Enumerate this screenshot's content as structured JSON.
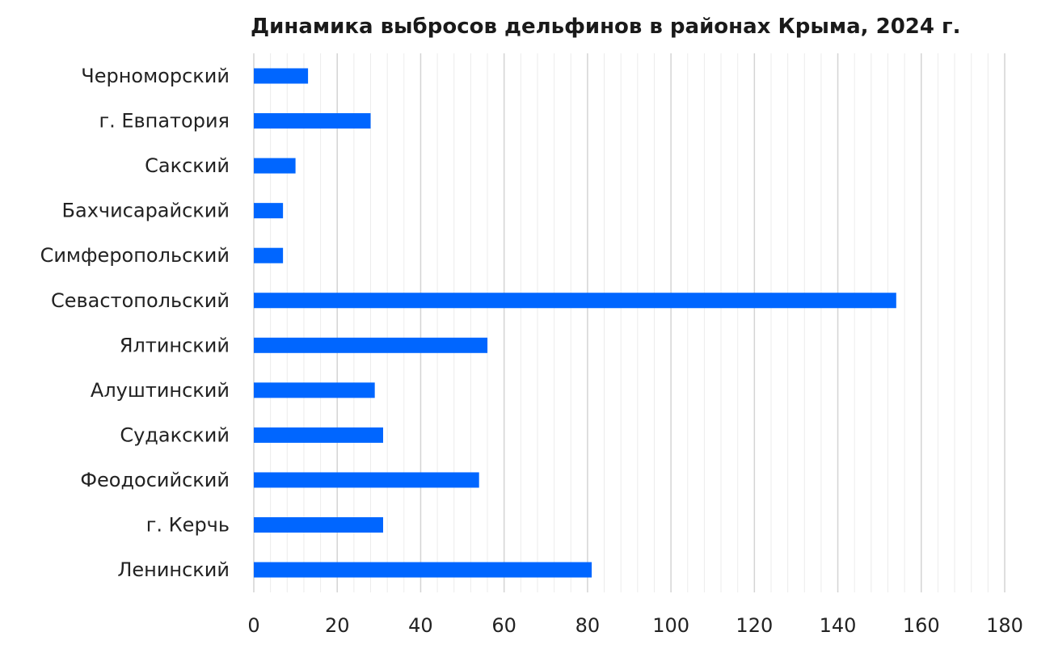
{
  "chart_data": {
    "type": "bar",
    "orientation": "horizontal",
    "title": "Динамика выбросов дельфинов в районах Крыма, 2024 г.",
    "xlabel": "",
    "ylabel": "",
    "categories": [
      "Черноморский",
      "г. Евпатория",
      "Сакский",
      "Бахчисарайский",
      "Симферопольский",
      "Севастопольский",
      "Ялтинский",
      "Алуштинский",
      "Судакский",
      "Феодосийский",
      "г. Керчь",
      "Ленинский"
    ],
    "values": [
      13,
      28,
      10,
      7,
      7,
      154,
      56,
      29,
      31,
      54,
      31,
      81
    ],
    "xlim": [
      0,
      180
    ],
    "x_ticks": [
      0,
      20,
      40,
      60,
      80,
      100,
      120,
      140,
      160,
      180
    ],
    "x_tick_labels": [
      "0",
      "20",
      "40",
      "60",
      "80",
      "100",
      "120",
      "140",
      "160",
      "180"
    ],
    "minor_tick_step": 4,
    "grid": true,
    "legend": "none",
    "bar_color": "#0066ff",
    "major_grid_color": "#d4d4d4",
    "minor_grid_color": "#ececec"
  }
}
